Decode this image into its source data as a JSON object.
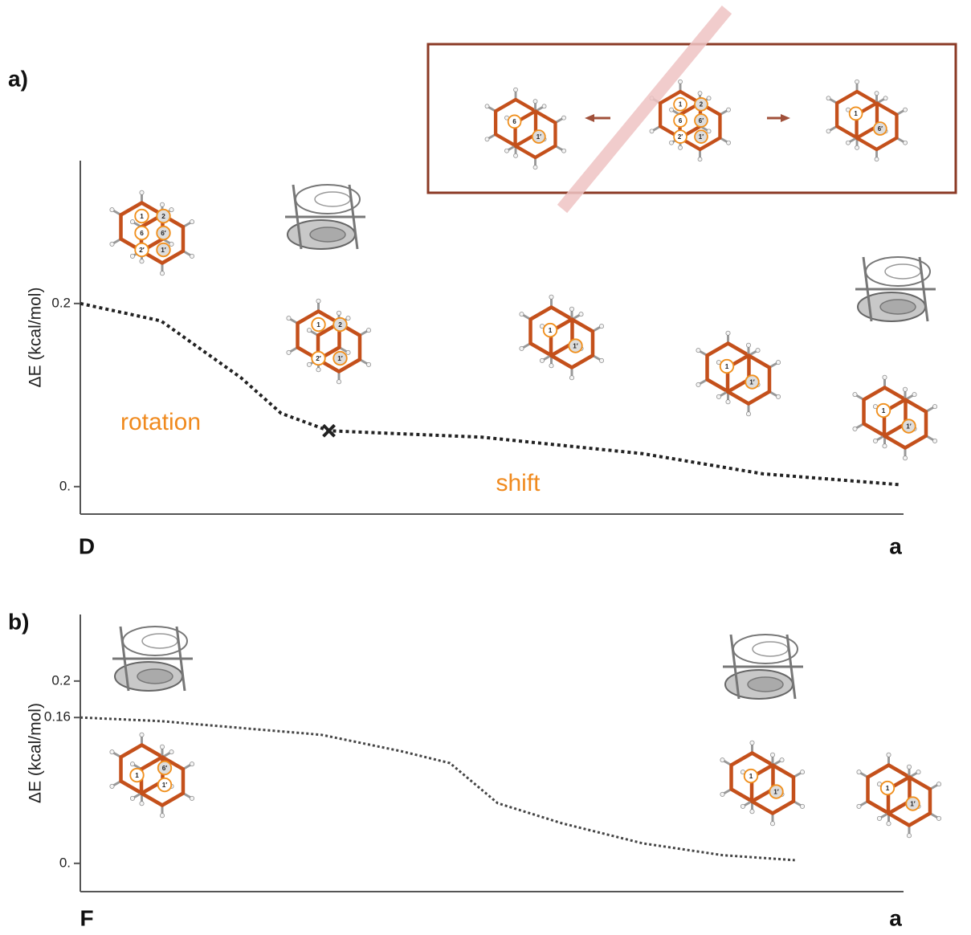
{
  "chart_data": [
    {
      "type": "line",
      "panel_label": "a)",
      "ylabel": "ΔE (kcal/mol)",
      "xlim": [
        0,
        1
      ],
      "xticks": [
        {
          "value": 0,
          "label": "D"
        },
        {
          "value": 1,
          "label": "a"
        }
      ],
      "ylim": [
        -0.03,
        0.356
      ],
      "yticks": [
        {
          "value": 0,
          "label": "0."
        },
        0.2
      ],
      "x": [
        0,
        0.098,
        0.195,
        0.244,
        0.302,
        0.488,
        0.683,
        0.829,
        0.997
      ],
      "values": [
        0.2,
        0.181,
        0.119,
        0.08,
        0.061,
        0.054,
        0.036,
        0.014,
        0.002
      ],
      "color": "#222222",
      "annotations": [
        "rotation",
        "shift"
      ],
      "structures": [
        {
          "labels": [
            "1",
            "2",
            "6",
            "6′",
            "2′",
            "1′"
          ]
        },
        {
          "labels": [
            "1",
            "2",
            "2′",
            "1′"
          ]
        },
        {
          "labels": [
            "1",
            "1′"
          ]
        },
        {
          "labels": [
            "1",
            "1′"
          ]
        },
        {
          "labels": [
            "1",
            "1′"
          ]
        }
      ],
      "inset": [
        {
          "labels": [
            "6",
            "1′"
          ]
        },
        {
          "labels": [
            "1",
            "2",
            "6",
            "6′",
            "2′",
            "1′"
          ]
        },
        {
          "labels": [
            "1",
            "6′"
          ]
        }
      ]
    },
    {
      "type": "line",
      "panel_label": "b)",
      "ylabel": "ΔE (kcal/mol)",
      "xlim": [
        0,
        1
      ],
      "xticks": [
        {
          "value": 0,
          "label": "F"
        },
        {
          "value": 1,
          "label": "a"
        }
      ],
      "ylim": [
        -0.031,
        0.273
      ],
      "yticks": [
        {
          "value": 0,
          "label": "0."
        },
        0.16,
        0.2
      ],
      "x": [
        0,
        0.098,
        0.293,
        0.39,
        0.449,
        0.507,
        0.585,
        0.683,
        0.78,
        0.868
      ],
      "values": [
        0.16,
        0.156,
        0.141,
        0.123,
        0.11,
        0.066,
        0.044,
        0.022,
        0.009,
        0.0035
      ],
      "color": "#444444",
      "structures": [
        {
          "labels": [
            "1",
            "6′",
            "1′"
          ]
        },
        {
          "labels": [
            "1",
            "1′"
          ]
        },
        {
          "labels": [
            "1",
            "1′"
          ]
        }
      ]
    }
  ]
}
